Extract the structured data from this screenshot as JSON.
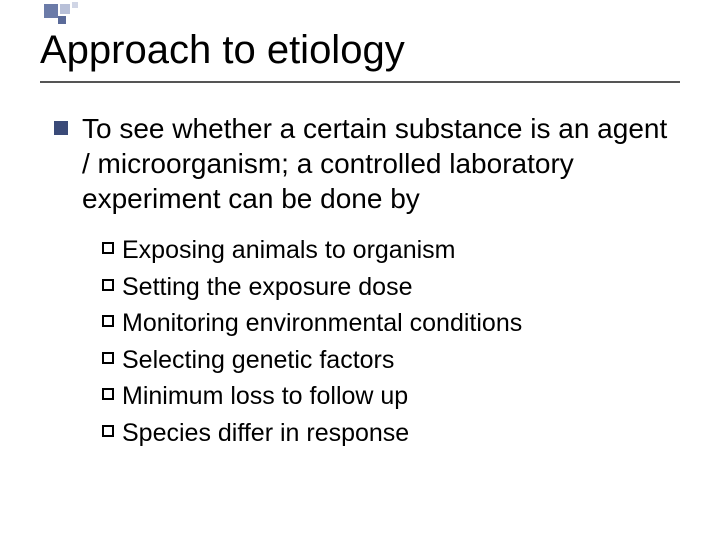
{
  "title": "Approach to etiology",
  "main_point": "To see whether a certain substance is an agent / microorganism;  a controlled laboratory experiment can be done by",
  "sub_points": [
    "Exposing animals to organism",
    "Setting the exposure dose",
    "Monitoring environmental conditions",
    "Selecting genetic factors",
    "Minimum loss to follow up",
    "Species differ in response"
  ],
  "colors": {
    "title_border": "#555555",
    "l1_bullet": "#3a4a78",
    "l2_bullet_border": "#000000",
    "deco": [
      "#6b7ba8",
      "#b8c0d8",
      "#5a6a99",
      "#d0d5e5"
    ]
  },
  "typography": {
    "title_fontsize": 40,
    "l1_fontsize": 28,
    "l2_fontsize": 25,
    "font_family": "Arial"
  }
}
